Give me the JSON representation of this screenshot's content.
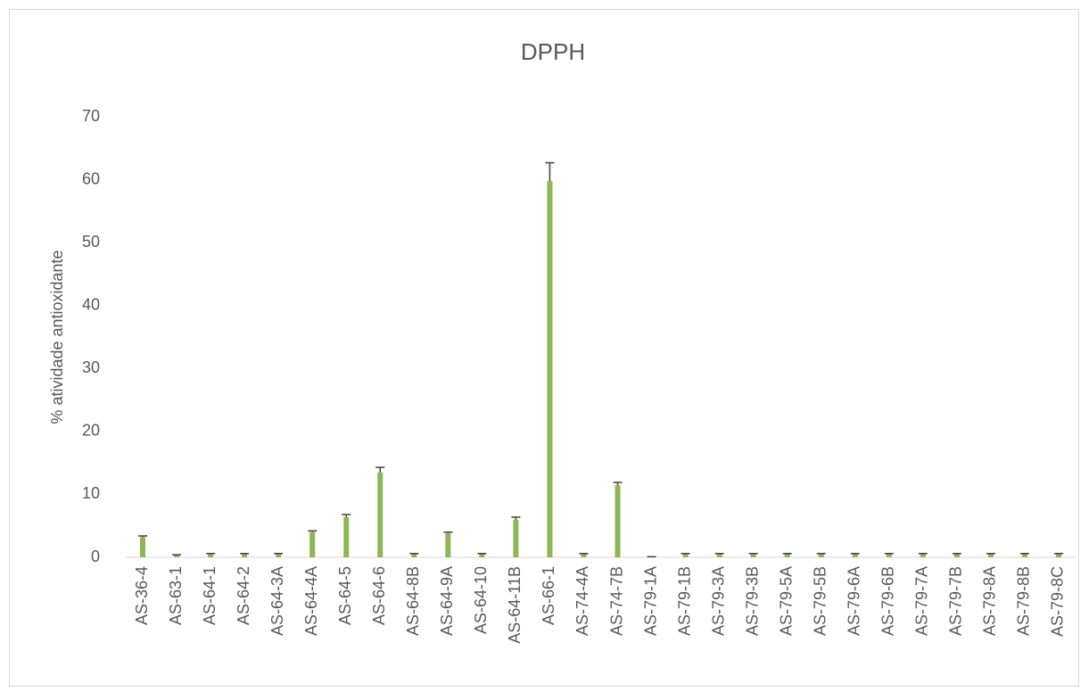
{
  "chart_data": {
    "type": "bar",
    "title": "DPPH",
    "y_label": "% atividade antioxidante",
    "categories": [
      "AS-36-4",
      "AS-63-1",
      "AS-64-1",
      "AS-64-2",
      "AS-64-3A",
      "AS-64-4A",
      "AS-64-5",
      "AS-64-6",
      "AS-64-8B",
      "AS-64-9A",
      "AS-64-10",
      "AS-64-11B",
      "AS-66-1",
      "AS-74-4A",
      "AS-74-7B",
      "AS-79-1A",
      "AS-79-1B",
      "AS-79-3A",
      "AS-79-3B",
      "AS-79-5A",
      "AS-79-5B",
      "AS-79-6A",
      "AS-79-6B",
      "AS-79-7A",
      "AS-79-7B",
      "AS-79-8A",
      "AS-79-8B",
      "AS-79-8C"
    ],
    "values": [
      3.2,
      0.3,
      0.5,
      0.5,
      0.5,
      4.0,
      6.4,
      13.5,
      0.5,
      3.8,
      0.5,
      6.0,
      59.8,
      0.5,
      11.5,
      0.1,
      0.5,
      0.5,
      0.5,
      0.5,
      0.5,
      0.5,
      0.5,
      0.5,
      0.5,
      0.5,
      0.5,
      0.5
    ],
    "errors": [
      0.2,
      0.1,
      0.1,
      0.1,
      0.1,
      0.2,
      0.4,
      0.8,
      0.1,
      0.2,
      0.1,
      0.4,
      2.9,
      0.1,
      0.4,
      0,
      0.1,
      0.1,
      0.1,
      0.1,
      0.1,
      0.1,
      0.1,
      0.1,
      0.1,
      0.1,
      0.1,
      0.1
    ],
    "color": "#8db656",
    "error_color": "#404040",
    "ylim": [
      0,
      70
    ],
    "yticks": [
      0,
      10,
      20,
      30,
      40,
      50,
      60,
      70
    ],
    "grid": false
  }
}
